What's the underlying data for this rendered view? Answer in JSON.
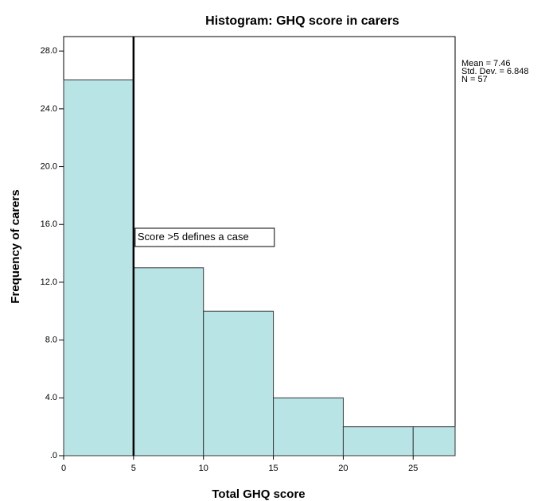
{
  "chart_data": {
    "type": "histogram",
    "title": "Histogram: GHQ score in carers",
    "xlabel": "Total GHQ score",
    "ylabel": "Frequency of carers",
    "bins": [
      0,
      5,
      10,
      15,
      20,
      25,
      28
    ],
    "values": [
      26,
      13,
      10,
      4,
      2,
      2
    ],
    "color": "#b8e4e6",
    "xlim": [
      0,
      28
    ],
    "ylim": [
      0,
      29
    ],
    "xticks": [
      0,
      5,
      10,
      15,
      20,
      25
    ],
    "yticks": [
      {
        "value": 0,
        "label": ".0"
      },
      {
        "value": 4,
        "label": "4.0"
      },
      {
        "value": 8,
        "label": "8.0"
      },
      {
        "value": 12,
        "label": "12.0"
      },
      {
        "value": 16,
        "label": "16.0"
      },
      {
        "value": 20,
        "label": "20.0"
      },
      {
        "value": 24,
        "label": "24.0"
      },
      {
        "value": 28,
        "label": "28.0"
      }
    ],
    "reference_line": 5,
    "annotation": "Score >5 defines a case",
    "stats": [
      "Mean = 7.46",
      "Std. Dev. = 6.848",
      "N = 57"
    ]
  }
}
